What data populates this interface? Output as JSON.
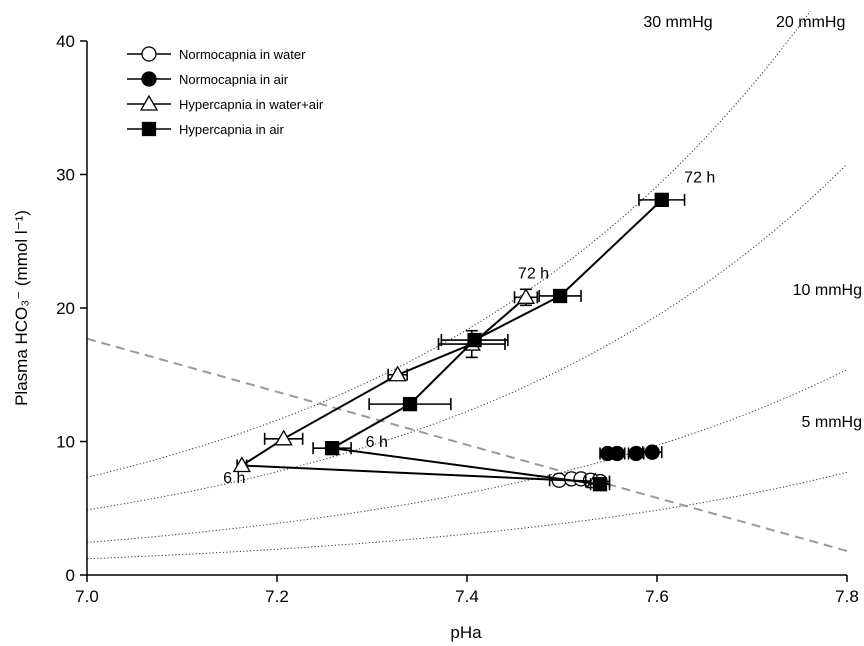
{
  "chart_data": {
    "type": "scatter",
    "xlabel": "pHa",
    "ylabel": "Plasma HCO₃⁻ (mmol l⁻¹)",
    "xlim": [
      7.0,
      7.8
    ],
    "ylim": [
      0,
      40
    ],
    "xticks": [
      "7.0",
      "7.2",
      "7.4",
      "7.6",
      "7.8"
    ],
    "yticks": [
      "0",
      "10",
      "20",
      "30",
      "40"
    ],
    "legend_position": "top-left",
    "series": [
      {
        "name": "Normocapnia in water",
        "marker": "circle-open",
        "connected": false,
        "points": [
          {
            "x": 7.497,
            "y": 7.1,
            "xerr": 0.01
          },
          {
            "x": 7.51,
            "y": 7.2,
            "xerr": 0.01
          },
          {
            "x": 7.52,
            "y": 7.2,
            "xerr": 0.01
          },
          {
            "x": 7.53,
            "y": 7.1,
            "xerr": 0.01
          },
          {
            "x": 7.54,
            "y": 7.0,
            "xerr": 0.01
          }
        ]
      },
      {
        "name": "Normocapnia in air",
        "marker": "circle-filled",
        "connected": false,
        "points": [
          {
            "x": 7.548,
            "y": 9.1,
            "xerr": 0.008
          },
          {
            "x": 7.558,
            "y": 9.1,
            "xerr": 0.008
          },
          {
            "x": 7.578,
            "y": 9.1,
            "xerr": 0.008
          },
          {
            "x": 7.595,
            "y": 9.2,
            "xerr": 0.01
          }
        ]
      },
      {
        "name": "Hypercapnia in water+air",
        "marker": "triangle-open",
        "connected": true,
        "points": [
          {
            "x": 7.535,
            "y": 7.0,
            "xerr": 0.01
          },
          {
            "x": 7.163,
            "y": 8.2,
            "xerr": 0.005
          },
          {
            "x": 7.207,
            "y": 10.2,
            "xerr": 0.02
          },
          {
            "x": 7.327,
            "y": 15.0,
            "xerr": 0.01
          },
          {
            "x": 7.405,
            "y": 17.3,
            "xerr": 0.035,
            "yerr": 1.0
          },
          {
            "x": 7.462,
            "y": 20.8,
            "xerr": 0.012,
            "yerr": 0.6
          }
        ]
      },
      {
        "name": "Hypercapnia in air",
        "marker": "square-filled",
        "connected": true,
        "points": [
          {
            "x": 7.54,
            "y": 6.8,
            "xerr": 0.01
          },
          {
            "x": 7.258,
            "y": 9.5,
            "xerr": 0.02
          },
          {
            "x": 7.34,
            "y": 12.8,
            "xerr": 0.043
          },
          {
            "x": 7.408,
            "y": 17.6,
            "xerr": 0.035
          },
          {
            "x": 7.498,
            "y": 20.9,
            "xerr": 0.022
          },
          {
            "x": 7.605,
            "y": 28.1,
            "xerr": 0.024
          }
        ]
      }
    ],
    "isopleths": [
      {
        "label": "30 mmHg",
        "pco2": 30
      },
      {
        "label": "20 mmHg",
        "pco2": 20
      },
      {
        "label": "10 mmHg",
        "pco2": 10
      },
      {
        "label": "5 mmHg",
        "pco2": 5
      }
    ],
    "buffer_line": {
      "x": [
        7.0,
        7.8
      ],
      "y": [
        17.7,
        1.8
      ]
    },
    "annotations": [
      {
        "text": "6 h",
        "x": 7.155,
        "y": 6.9
      },
      {
        "text": "6 h",
        "x": 7.305,
        "y": 9.6
      },
      {
        "text": "72 h",
        "x": 7.47,
        "y": 22.2
      },
      {
        "text": "72 h",
        "x": 7.645,
        "y": 29.4
      }
    ]
  }
}
